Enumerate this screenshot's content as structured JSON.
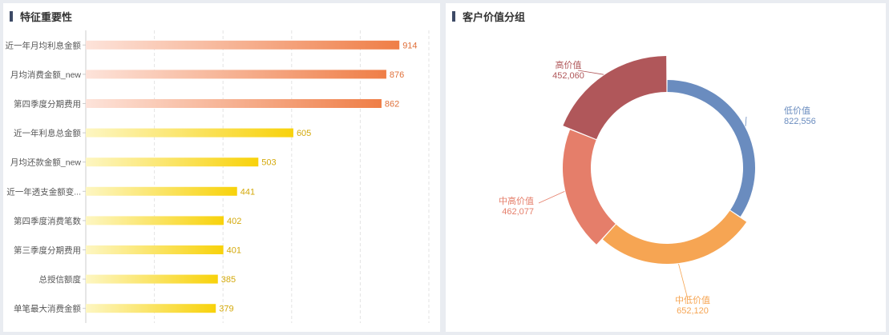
{
  "feature_panel": {
    "title": "特征重要性"
  },
  "segment_panel": {
    "title": "客户价值分组"
  },
  "chart_data": [
    {
      "type": "bar",
      "orientation": "horizontal",
      "title": "特征重要性",
      "categories": [
        "近一年月均利息金额",
        "月均消费金额_new",
        "第四季度分期费用",
        "近一年利息总金额",
        "月均还款金额_new",
        "近一年透支金额变...",
        "第四季度消费笔数",
        "第三季度分期费用",
        "总授信额度",
        "单笔最大消费金额"
      ],
      "values": [
        914,
        876,
        862,
        605,
        503,
        441,
        402,
        401,
        385,
        379
      ],
      "xlim": [
        0,
        1000
      ],
      "grid": true,
      "colors": {
        "orange_start": "#fde3da",
        "orange_end": "#ef7e47",
        "orange_label": "#e0703a",
        "yellow_start": "#fdf6c2",
        "yellow_end": "#f8d20b",
        "yellow_label": "#d4a90a"
      }
    },
    {
      "type": "pie",
      "style": "donut",
      "title": "客户价值分组",
      "labels": [
        "低价值",
        "中低价值",
        "中高价值",
        "高价值"
      ],
      "values": [
        822556,
        652120,
        462077,
        452060
      ],
      "value_labels": [
        "822,556",
        "652,120",
        "462,077",
        "452,060"
      ],
      "colors": [
        "#6a8cbf",
        "#f6a553",
        "#e57e6a",
        "#b0575a"
      ]
    }
  ]
}
